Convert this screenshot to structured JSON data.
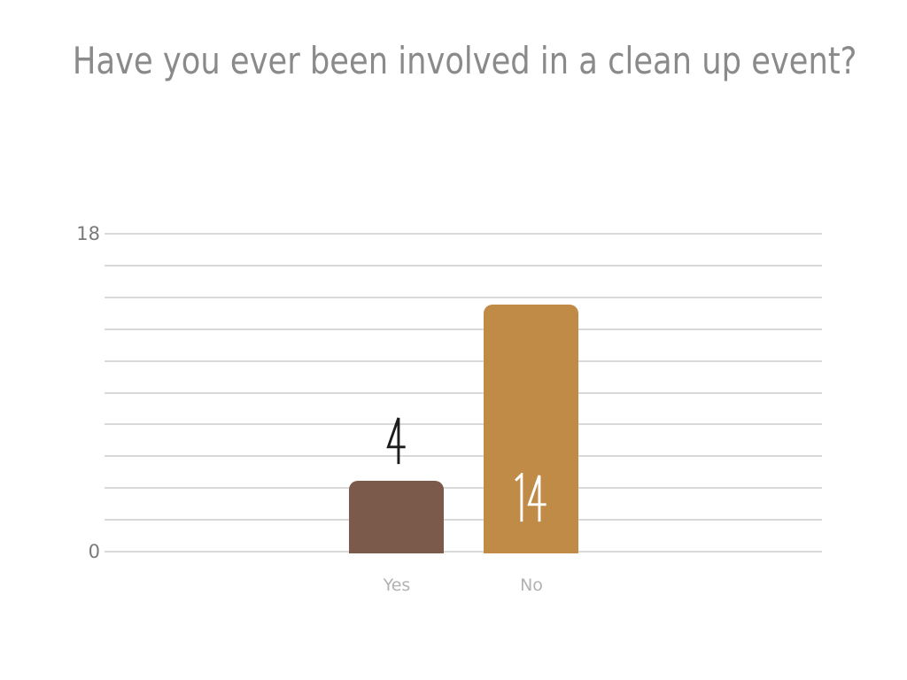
{
  "chart_data": {
    "type": "bar",
    "title": "Have you ever been involved in a clean up event?",
    "categories": [
      "Yes",
      "No"
    ],
    "values": [
      4,
      14
    ],
    "xlabel": "",
    "ylabel": "",
    "ylim": [
      0,
      18
    ],
    "y_ticks": [
      "18",
      "0"
    ],
    "gridlines": 11,
    "grid": true,
    "legend_position": "none",
    "value_label_placement": [
      "above",
      "inside"
    ],
    "colors": {
      "bars": [
        "#7b594b",
        "#c08b46"
      ],
      "value_labels": [
        "#1d1d1d",
        "#ffffff"
      ],
      "title": "#8a8a8a",
      "axis_tick_labels": "#7a7a7a",
      "category_labels": "#b2b2b2",
      "gridline": "#d9d9d9",
      "background": "#ffffff"
    }
  }
}
